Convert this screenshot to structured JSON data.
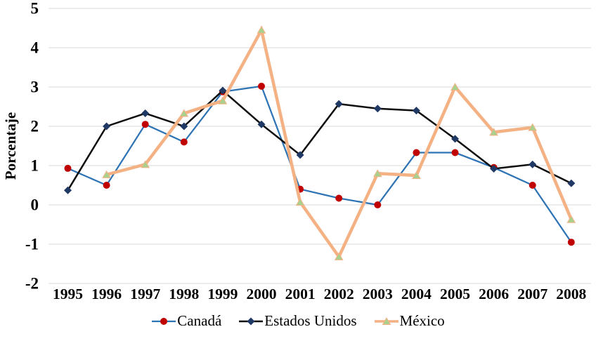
{
  "chart_data": {
    "type": "line",
    "ylabel": "Porcentaje",
    "ylim": [
      -2,
      5
    ],
    "yticks": [
      5,
      4,
      3,
      2,
      1,
      0,
      -1,
      -2
    ],
    "grid": true,
    "gridline_color": "#D9D9D9",
    "text_color": "#000000",
    "legend_position": "bottom",
    "categories": [
      "1995",
      "1996",
      "1997",
      "1998",
      "1999",
      "2000",
      "2001",
      "2002",
      "2003",
      "2004",
      "2005",
      "2006",
      "2007",
      "2008"
    ],
    "series": [
      {
        "name": "Canadá",
        "line_color": "#2E74B5",
        "line_width": 2.25,
        "marker": "circle",
        "marker_color": "#C00000",
        "values": [
          0.93,
          0.5,
          2.05,
          1.6,
          2.88,
          3.02,
          0.4,
          0.17,
          0.0,
          1.33,
          1.33,
          0.95,
          0.5,
          -0.95
        ]
      },
      {
        "name": "Estados Unidos",
        "line_color": "#0D0D0D",
        "line_width": 2.5,
        "marker": "diamond",
        "marker_color": "#1F3864",
        "values": [
          0.37,
          2.0,
          2.33,
          2.0,
          2.91,
          2.05,
          1.27,
          2.57,
          2.45,
          2.4,
          1.68,
          0.92,
          1.03,
          0.55
        ]
      },
      {
        "name": "México",
        "line_color": "#F4B183",
        "line_width": 4.5,
        "marker": "triangle",
        "marker_color": "#A9D18E",
        "values": [
          null,
          0.77,
          1.03,
          2.33,
          2.65,
          4.45,
          0.07,
          -1.32,
          0.8,
          0.75,
          3.0,
          1.85,
          1.97,
          -0.37
        ]
      }
    ]
  }
}
